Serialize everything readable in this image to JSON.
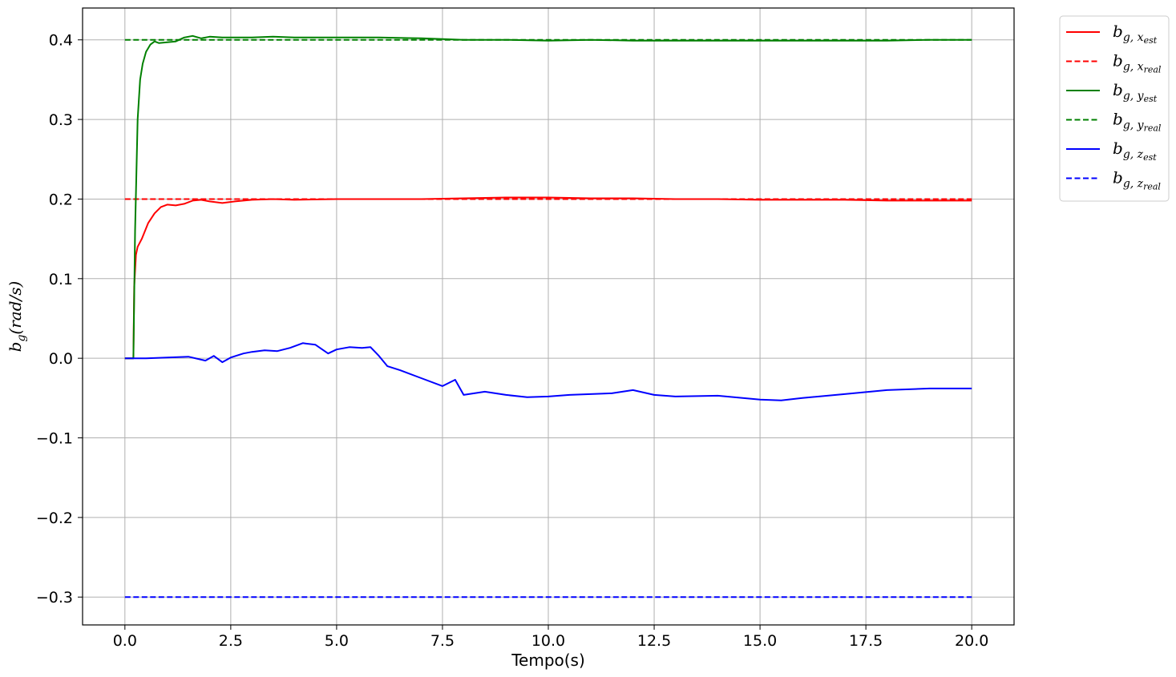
{
  "chart_data": {
    "type": "line",
    "xlabel": "Tempo(s)",
    "ylabel": "b_g(rad/s)",
    "xlim": [
      -1.0,
      21.0
    ],
    "ylim": [
      -0.335,
      0.44
    ],
    "xticks": [
      0.0,
      2.5,
      5.0,
      7.5,
      10.0,
      12.5,
      15.0,
      17.5,
      20.0
    ],
    "xtick_labels": [
      "0.0",
      "2.5",
      "5.0",
      "7.5",
      "10.0",
      "12.5",
      "15.0",
      "17.5",
      "20.0"
    ],
    "yticks": [
      -0.3,
      -0.2,
      -0.1,
      0.0,
      0.1,
      0.2,
      0.3,
      0.4
    ],
    "ytick_labels": [
      "−0.3",
      "−0.2",
      "−0.1",
      "0.0",
      "0.1",
      "0.2",
      "0.3",
      "0.4"
    ],
    "grid": true,
    "legend_position": "outside-top-right",
    "series": [
      {
        "name": "b_{g,x_est}",
        "legend_main": "b",
        "legend_sub": "g, x",
        "legend_subsub": "est",
        "color": "#ff0000",
        "style": "solid",
        "x": [
          0.0,
          0.2,
          0.22,
          0.26,
          0.3,
          0.4,
          0.55,
          0.7,
          0.85,
          1.0,
          1.2,
          1.4,
          1.6,
          1.8,
          2.0,
          2.3,
          2.6,
          3.0,
          3.5,
          4.0,
          5.0,
          6.0,
          7.0,
          8.0,
          9.0,
          10.0,
          11.0,
          12.0,
          13.0,
          14.0,
          15.0,
          16.0,
          17.0,
          18.0,
          19.0,
          20.0
        ],
        "y": [
          0.0,
          0.0,
          0.09,
          0.13,
          0.14,
          0.15,
          0.17,
          0.182,
          0.19,
          0.193,
          0.192,
          0.194,
          0.198,
          0.199,
          0.197,
          0.195,
          0.197,
          0.199,
          0.2,
          0.199,
          0.2,
          0.2,
          0.2,
          0.201,
          0.202,
          0.202,
          0.201,
          0.201,
          0.2,
          0.2,
          0.199,
          0.199,
          0.199,
          0.198,
          0.198,
          0.198
        ]
      },
      {
        "name": "b_{g,x_real}",
        "legend_main": "b",
        "legend_sub": "g, x",
        "legend_subsub": "real",
        "color": "#ff0000",
        "style": "dashed",
        "x": [
          0.0,
          20.0
        ],
        "y": [
          0.2,
          0.2
        ]
      },
      {
        "name": "b_{g,y_est}",
        "legend_main": "b",
        "legend_sub": "g, y",
        "legend_subsub": "est",
        "color": "#008000",
        "style": "solid",
        "x": [
          0.0,
          0.2,
          0.24,
          0.3,
          0.36,
          0.42,
          0.5,
          0.6,
          0.7,
          0.8,
          1.0,
          1.2,
          1.4,
          1.6,
          1.8,
          2.0,
          2.3,
          2.6,
          3.0,
          3.5,
          4.0,
          5.0,
          6.0,
          7.0,
          8.0,
          9.0,
          10.0,
          11.0,
          12.0,
          13.0,
          14.0,
          15.0,
          16.0,
          17.0,
          18.0,
          19.0,
          20.0
        ],
        "y": [
          0.0,
          0.0,
          0.16,
          0.3,
          0.35,
          0.37,
          0.385,
          0.394,
          0.398,
          0.396,
          0.397,
          0.398,
          0.403,
          0.405,
          0.402,
          0.404,
          0.403,
          0.403,
          0.403,
          0.404,
          0.403,
          0.403,
          0.403,
          0.402,
          0.4,
          0.4,
          0.399,
          0.4,
          0.399,
          0.399,
          0.399,
          0.399,
          0.399,
          0.399,
          0.399,
          0.4,
          0.4
        ]
      },
      {
        "name": "b_{g,y_real}",
        "legend_main": "b",
        "legend_sub": "g, y",
        "legend_subsub": "real",
        "color": "#008000",
        "style": "dashed",
        "x": [
          0.0,
          20.0
        ],
        "y": [
          0.4,
          0.4
        ]
      },
      {
        "name": "b_{g,z_est}",
        "legend_main": "b",
        "legend_sub": "g, z",
        "legend_subsub": "est",
        "color": "#0000ff",
        "style": "solid",
        "x": [
          0.0,
          0.5,
          1.0,
          1.5,
          1.9,
          2.1,
          2.3,
          2.5,
          2.8,
          3.0,
          3.3,
          3.6,
          3.9,
          4.2,
          4.5,
          4.8,
          5.0,
          5.3,
          5.6,
          5.8,
          6.0,
          6.2,
          6.5,
          7.0,
          7.5,
          7.8,
          8.0,
          8.5,
          9.0,
          9.5,
          10.0,
          10.5,
          11.0,
          11.5,
          12.0,
          12.5,
          13.0,
          14.0,
          15.0,
          15.5,
          16.0,
          17.0,
          18.0,
          19.0,
          20.0
        ],
        "y": [
          0.0,
          0.0,
          0.001,
          0.002,
          -0.003,
          0.003,
          -0.005,
          0.001,
          0.006,
          0.008,
          0.01,
          0.009,
          0.013,
          0.019,
          0.017,
          0.006,
          0.011,
          0.014,
          0.013,
          0.014,
          0.003,
          -0.01,
          -0.015,
          -0.025,
          -0.035,
          -0.027,
          -0.046,
          -0.042,
          -0.046,
          -0.049,
          -0.048,
          -0.046,
          -0.045,
          -0.044,
          -0.04,
          -0.046,
          -0.048,
          -0.047,
          -0.052,
          -0.053,
          -0.05,
          -0.045,
          -0.04,
          -0.038,
          -0.038
        ]
      },
      {
        "name": "b_{g,z_real}",
        "legend_main": "b",
        "legend_sub": "g, z",
        "legend_subsub": "real",
        "color": "#0000ff",
        "style": "dashed",
        "x": [
          0.0,
          20.0
        ],
        "y": [
          -0.3,
          -0.3
        ]
      }
    ]
  }
}
